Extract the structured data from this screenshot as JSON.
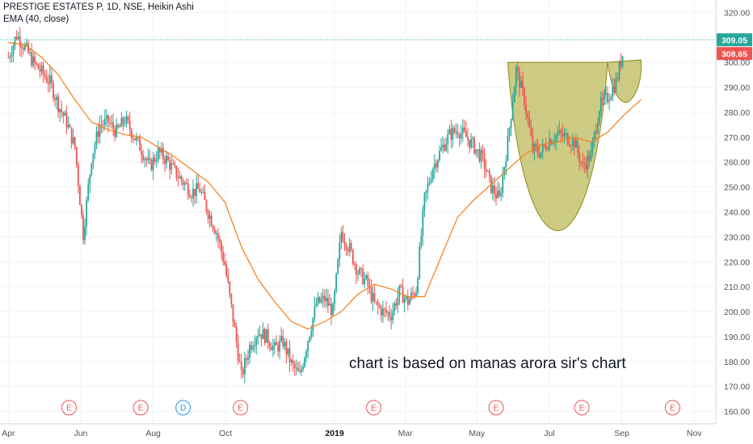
{
  "header": {
    "title": "PRESTIGE ESTATES P, 1D, NSE, Heikin Ashi",
    "indicator": "EMA (40, close)"
  },
  "annotation": "chart is based on manas arora sir's chart",
  "colors": {
    "up": "#26a69a",
    "down": "#ef5350",
    "ema": "#f57f17",
    "pattern_fill": "#a5a021",
    "last_price": "#26a69a",
    "ema_price": "#ef5350",
    "earnings": "#ef5350",
    "dividend": "#2196f3"
  },
  "chart_data": {
    "type": "candlestick",
    "title": "PRESTIGE ESTATES P, 1D, NSE, Heikin Ashi",
    "ylim": [
      155,
      325
    ],
    "y_ticks": [
      160,
      170,
      180,
      190,
      200,
      210,
      220,
      230,
      240,
      250,
      260,
      270,
      280,
      290,
      300,
      310,
      320
    ],
    "x_ticks": [
      {
        "label": "Apr",
        "week": 0
      },
      {
        "label": "Jun",
        "week": 8.7
      },
      {
        "label": "Aug",
        "week": 17.4
      },
      {
        "label": "Oct",
        "week": 26.1
      },
      {
        "label": "2019",
        "week": 39.2,
        "bold": true
      },
      {
        "label": "Mar",
        "week": 47.7
      },
      {
        "label": "May",
        "week": 56.3
      },
      {
        "label": "Jul",
        "week": 65.0
      },
      {
        "label": "Sep",
        "week": 73.7
      },
      {
        "label": "Nov",
        "week": 82.4
      }
    ],
    "x_range_weeks": [
      -1,
      85
    ],
    "series": [
      {
        "name": "Heikin Ashi",
        "kind": "weekly_closes",
        "closes": [
          302,
          311,
          306,
          300,
          296,
          292,
          283,
          276,
          266,
          231,
          262,
          275,
          276,
          272,
          277,
          271,
          265,
          258,
          264,
          261,
          256,
          252,
          248,
          249,
          240,
          232,
          219,
          197,
          174,
          186,
          192,
          190,
          185,
          188,
          179,
          174,
          189,
          203,
          205,
          200,
          232,
          225,
          216,
          212,
          203,
          200,
          199,
          208,
          204,
          209,
          245,
          258,
          265,
          271,
          273,
          270,
          266,
          261,
          250,
          245,
          268,
          297,
          285,
          265,
          264,
          269,
          271,
          270,
          268,
          258,
          263,
          282,
          286,
          292,
          306
        ]
      },
      {
        "name": "EMA (40, close)",
        "kind": "line",
        "points": [
          [
            0,
            308
          ],
          [
            2,
            307
          ],
          [
            4,
            302
          ],
          [
            6,
            295
          ],
          [
            8,
            285
          ],
          [
            10,
            276
          ],
          [
            12,
            273
          ],
          [
            14,
            271
          ],
          [
            16,
            270
          ],
          [
            18,
            266
          ],
          [
            20,
            262
          ],
          [
            22,
            257
          ],
          [
            24,
            252
          ],
          [
            26,
            244
          ],
          [
            28,
            226
          ],
          [
            30,
            213
          ],
          [
            32,
            204
          ],
          [
            34,
            196
          ],
          [
            36,
            193
          ],
          [
            38,
            196
          ],
          [
            40,
            200
          ],
          [
            42,
            207
          ],
          [
            44,
            211
          ],
          [
            46,
            209
          ],
          [
            48,
            206
          ],
          [
            50,
            206
          ],
          [
            52,
            222
          ],
          [
            54,
            238
          ],
          [
            56,
            245
          ],
          [
            58,
            251
          ],
          [
            60,
            257
          ],
          [
            62,
            263
          ],
          [
            64,
            267
          ],
          [
            66,
            268
          ],
          [
            68,
            270
          ],
          [
            70,
            268
          ],
          [
            72,
            272
          ],
          [
            74,
            279
          ],
          [
            76,
            285
          ]
        ]
      }
    ],
    "last_price": 309.05,
    "ema_value": 308.65,
    "events": [
      {
        "type": "E",
        "week": 7.3
      },
      {
        "type": "E",
        "week": 15.9
      },
      {
        "type": "D",
        "week": 21.0
      },
      {
        "type": "E",
        "week": 27.9
      },
      {
        "type": "E",
        "week": 43.9
      },
      {
        "type": "E",
        "week": 58.6
      },
      {
        "type": "E",
        "week": 68.9
      },
      {
        "type": "E",
        "week": 79.8
      }
    ]
  }
}
